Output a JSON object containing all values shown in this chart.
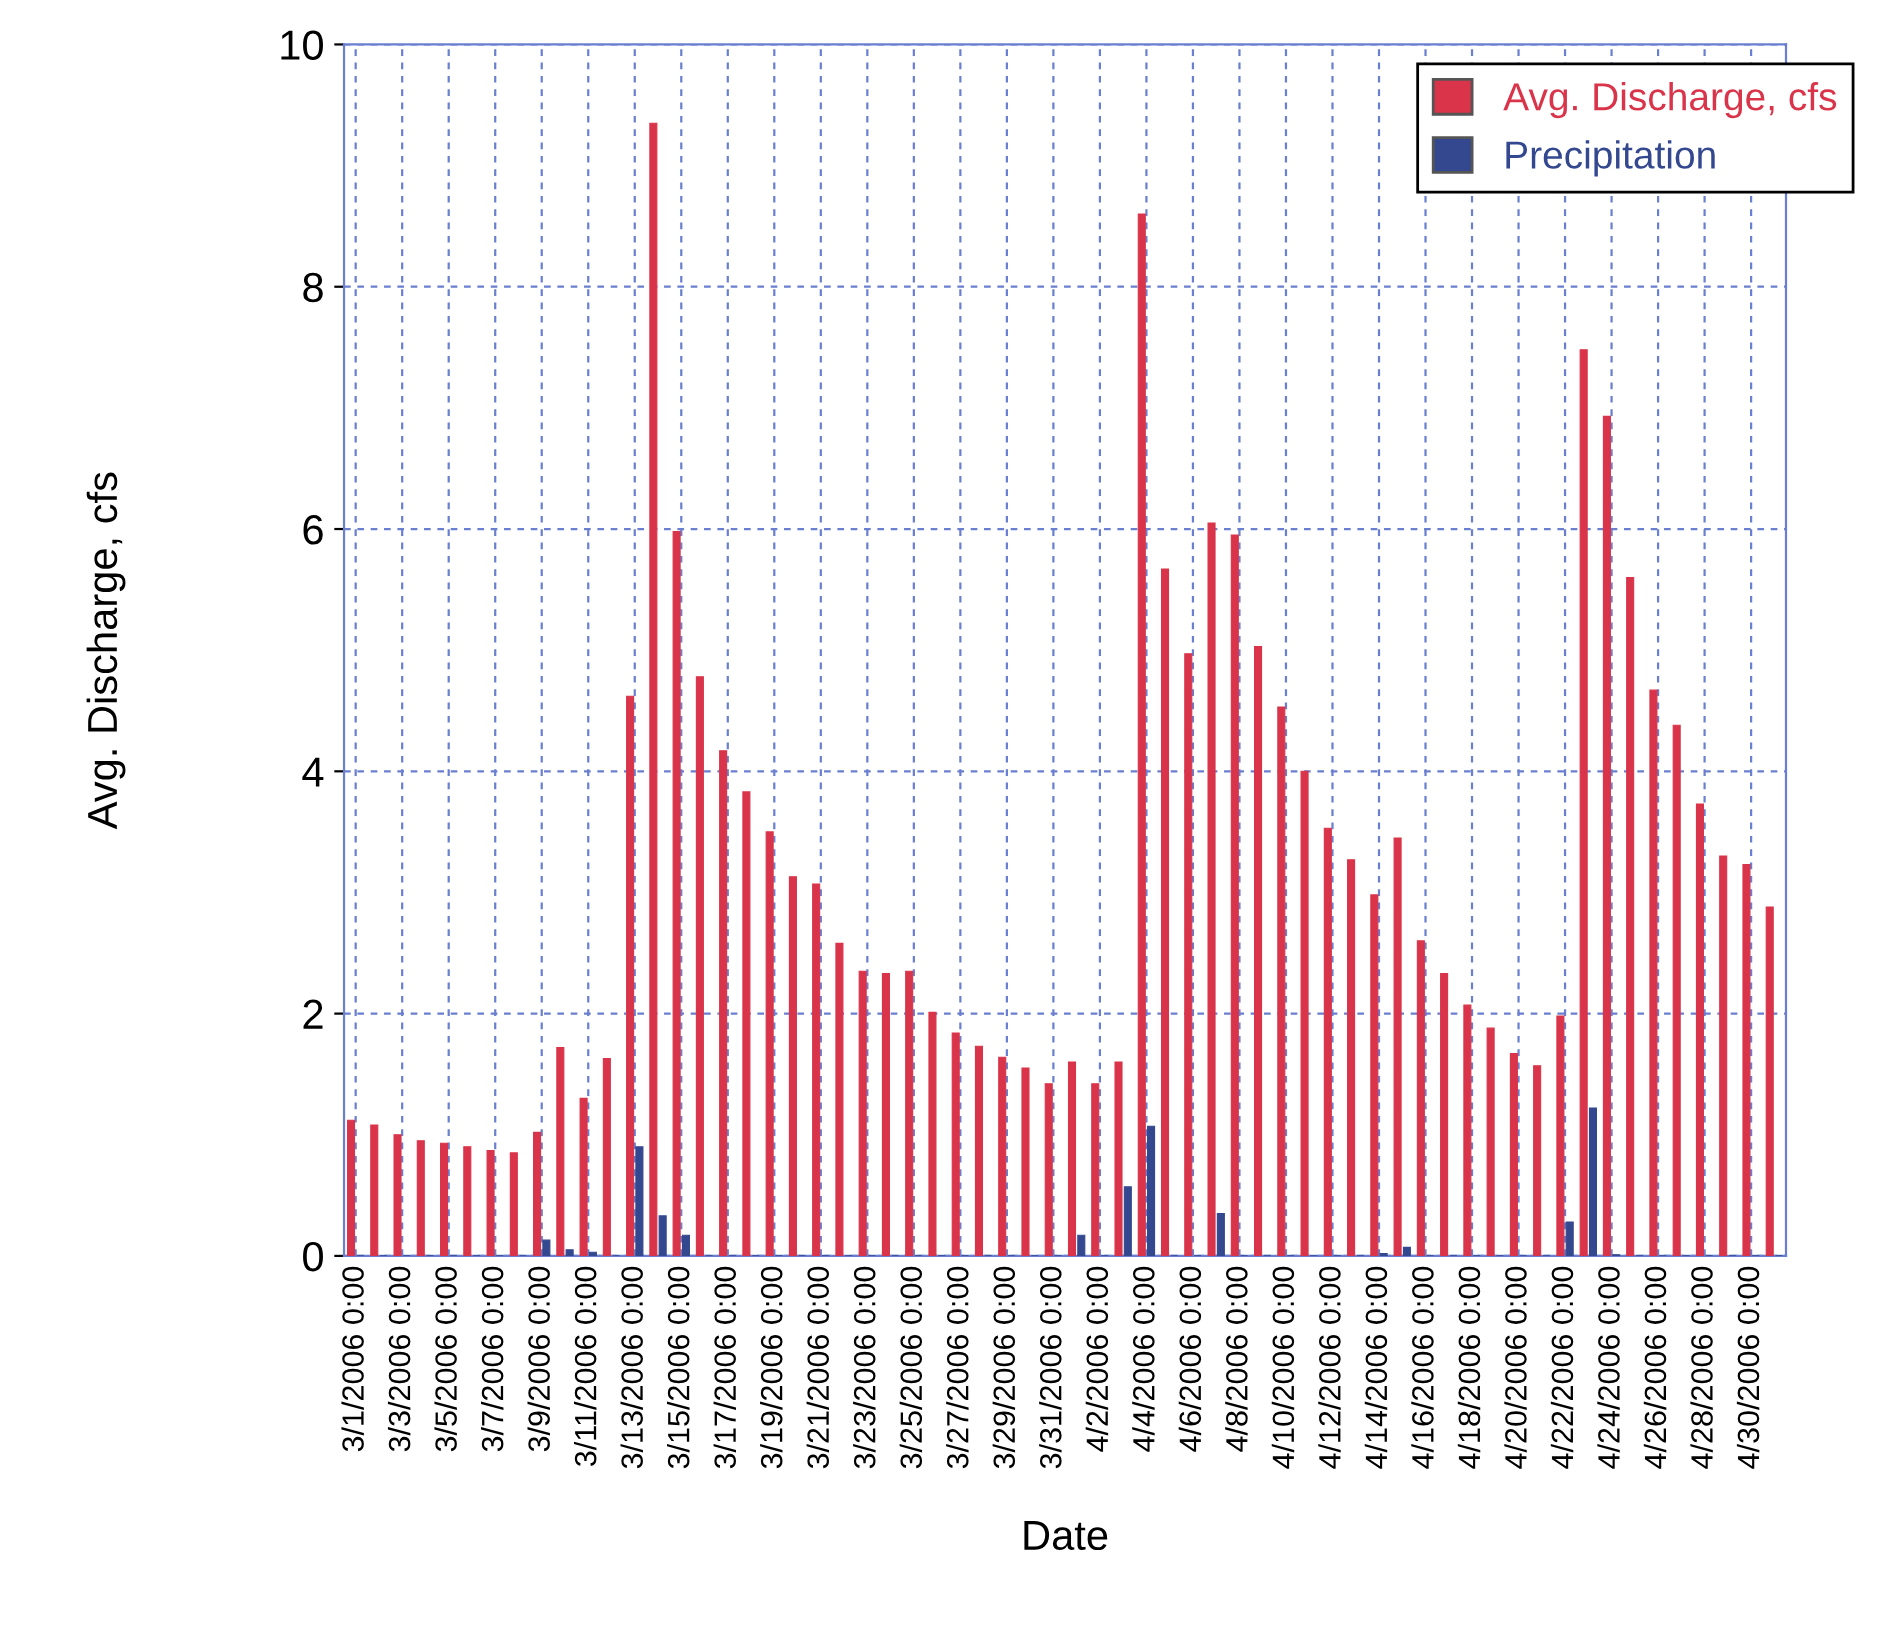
{
  "chart_data": {
    "type": "bar",
    "xlabel": "Date",
    "ylabel": "Avg. Discharge, cfs",
    "categories": [
      "3/1/2006 0:00",
      null,
      "3/3/2006 0:00",
      null,
      "3/5/2006 0:00",
      null,
      "3/7/2006 0:00",
      null,
      "3/9/2006 0:00",
      null,
      "3/11/2006 0:00",
      null,
      "3/13/2006 0:00",
      null,
      "3/15/2006 0:00",
      null,
      "3/17/2006 0:00",
      null,
      "3/19/2006 0:00",
      null,
      "3/21/2006 0:00",
      null,
      "3/23/2006 0:00",
      null,
      "3/25/2006 0:00",
      null,
      "3/27/2006 0:00",
      null,
      "3/29/2006 0:00",
      null,
      "3/31/2006 0:00",
      null,
      "4/2/2006 0:00",
      null,
      "4/4/2006 0:00",
      null,
      "4/6/2006 0:00",
      null,
      "4/8/2006 0:00",
      null,
      "4/10/2006 0:00",
      null,
      "4/12/2006 0:00",
      null,
      "4/14/2006 0:00",
      null,
      "4/16/2006 0:00",
      null,
      "4/18/2006 0:00",
      null,
      "4/20/2006 0:00",
      null,
      "4/22/2006 0:00",
      null,
      "4/24/2006 0:00",
      null,
      "4/26/2006 0:00",
      null,
      "4/28/2006 0:00",
      null,
      "4/30/2006 0:00",
      null
    ],
    "series": [
      {
        "name": "Avg. Discharge, cfs",
        "color": "#d9344a",
        "values": [
          1.12,
          1.08,
          1.0,
          0.95,
          0.93,
          0.9,
          0.87,
          0.85,
          1.02,
          1.72,
          1.3,
          1.63,
          4.62,
          9.35,
          5.98,
          4.78,
          4.17,
          3.83,
          3.5,
          3.13,
          3.07,
          2.58,
          2.35,
          2.33,
          2.35,
          2.01,
          1.84,
          1.73,
          1.64,
          1.55,
          1.42,
          1.6,
          1.42,
          1.6,
          8.6,
          5.67,
          4.97,
          6.05,
          5.95,
          5.03,
          4.53,
          4.0,
          3.53,
          3.27,
          2.98,
          3.45,
          2.6,
          2.33,
          2.07,
          1.88,
          1.67,
          1.57,
          1.98,
          7.48,
          6.93,
          5.6,
          4.67,
          4.38,
          3.73,
          3.3,
          3.23,
          2.88
        ]
      },
      {
        "name": "Precipitation",
        "color": "#34488f",
        "values": [
          0,
          0,
          0,
          0,
          0,
          0,
          0,
          0,
          0.13,
          0.05,
          0.03,
          0,
          0.9,
          0.33,
          0.17,
          0,
          0,
          0,
          0,
          0,
          0,
          0,
          0,
          0,
          0,
          0,
          0,
          0,
          0,
          0,
          0,
          0.17,
          0,
          0.57,
          1.07,
          0,
          0,
          0.35,
          0,
          0,
          0,
          0,
          0,
          0,
          0.02,
          0.07,
          0,
          0,
          0,
          0,
          0,
          0,
          0.28,
          1.22,
          0.01,
          0,
          0,
          0,
          0,
          0,
          0,
          0
        ]
      }
    ],
    "ylim": [
      0,
      10
    ],
    "yticks": [
      0,
      2,
      4,
      6,
      8,
      10
    ],
    "grid": true,
    "legend": "top right"
  }
}
